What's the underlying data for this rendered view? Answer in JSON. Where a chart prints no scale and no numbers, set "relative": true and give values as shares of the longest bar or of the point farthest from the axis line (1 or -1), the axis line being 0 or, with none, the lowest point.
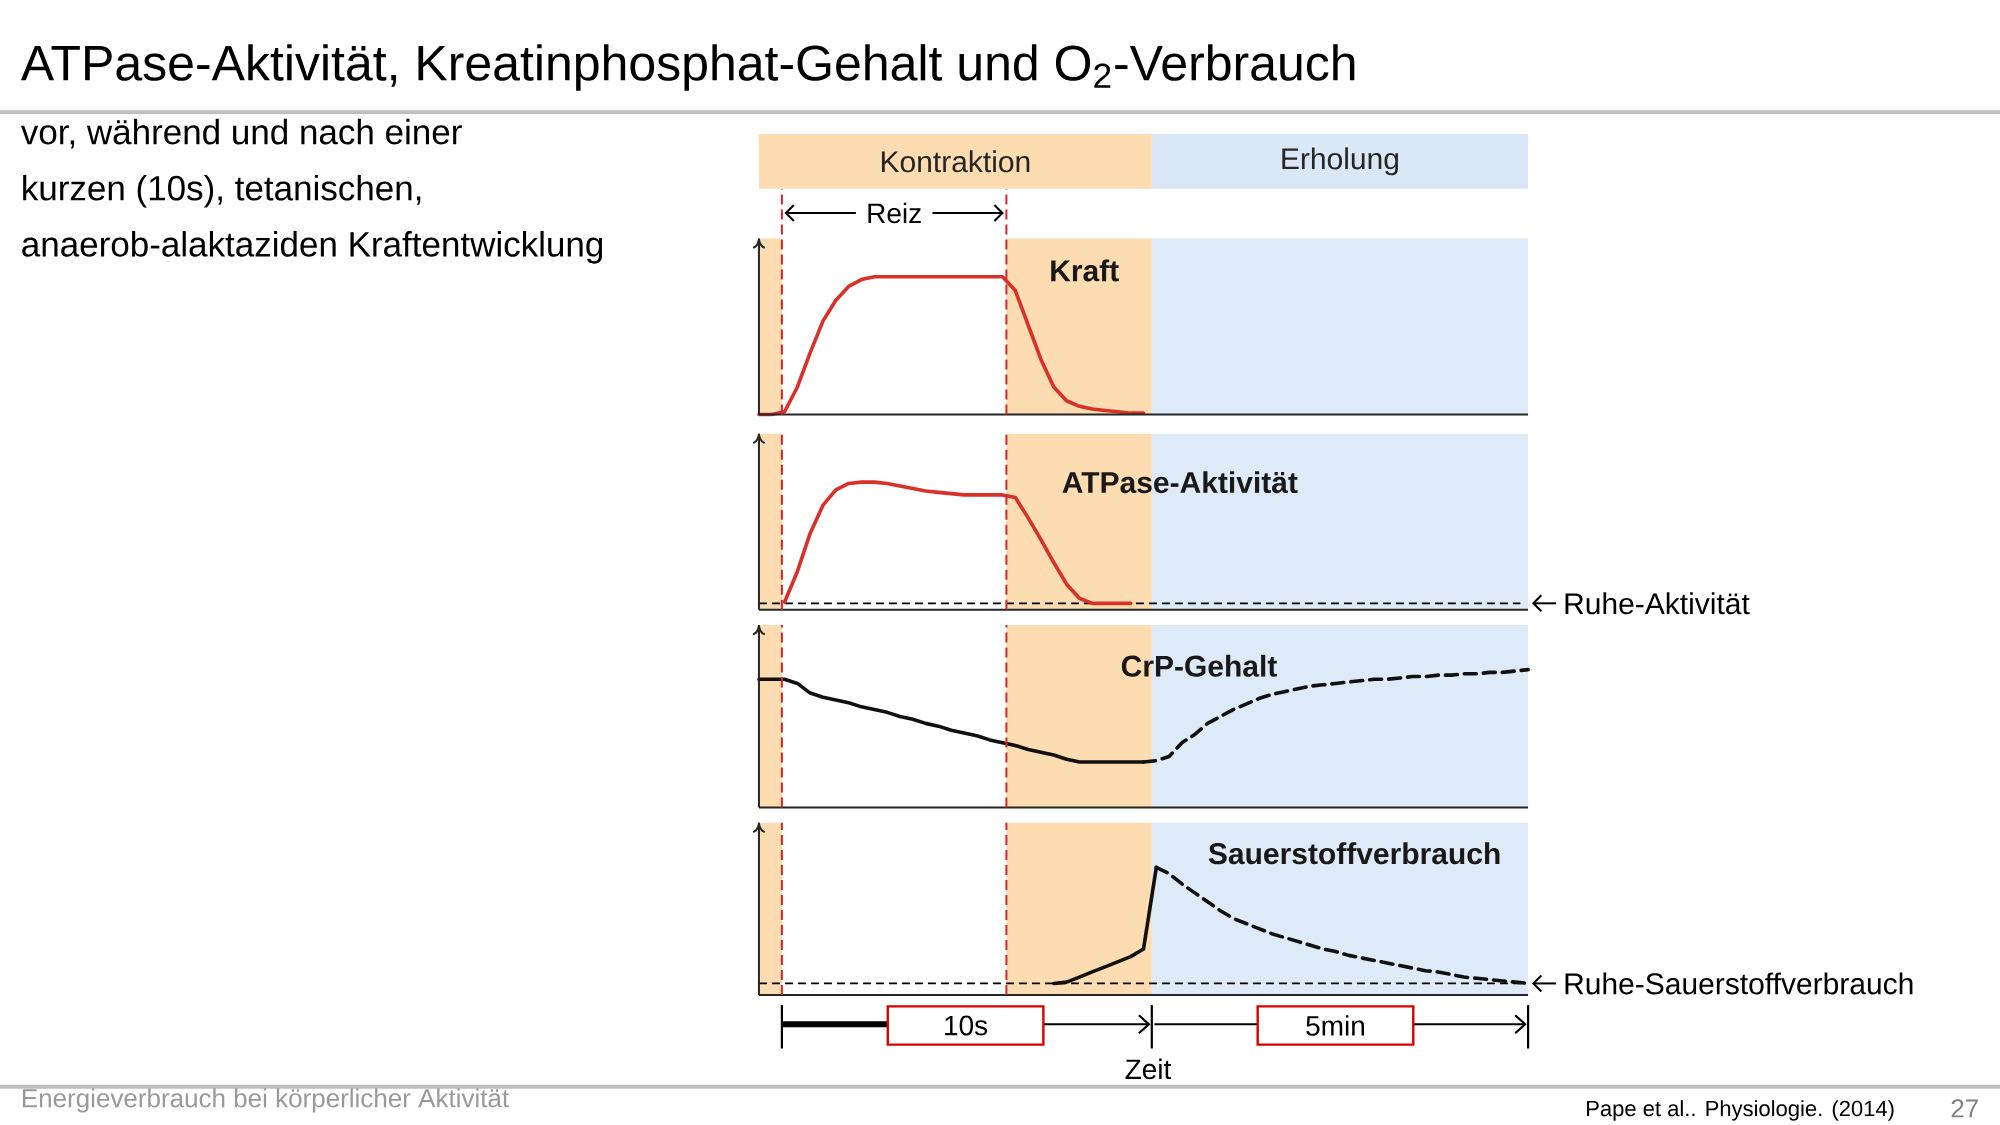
{
  "chart_data": [
    {
      "type": "line",
      "title": "Kraft",
      "relative": true,
      "categories": [
        null,
        null,
        null,
        null,
        null,
        null,
        null,
        null,
        null,
        null,
        null,
        null,
        null,
        null,
        null,
        null,
        null,
        null,
        null,
        null,
        null,
        null,
        null,
        null,
        null,
        null,
        null,
        null,
        null,
        null,
        null,
        null,
        null,
        null,
        null,
        null,
        null,
        null,
        null,
        null,
        null,
        null,
        null,
        null,
        null,
        null,
        null,
        null,
        null,
        null,
        null,
        null,
        null,
        null,
        null,
        null,
        null,
        null,
        null,
        null,
        null
      ],
      "series": [
        {
          "color": "#d9302a",
          "values": [
            0,
            0,
            0.02,
            0.2,
            0.45,
            0.68,
            0.83,
            0.93,
            0.98,
            1,
            1,
            1,
            1,
            1,
            1,
            1,
            1,
            1,
            1,
            1,
            0.9,
            0.65,
            0.4,
            0.2,
            0.1,
            0.06,
            0.04,
            0.03,
            0.02,
            0.01,
            0.01,
            null,
            null,
            null,
            null,
            null,
            null,
            null,
            null,
            null,
            null,
            null,
            null,
            null,
            null,
            null,
            null,
            null,
            null,
            null,
            null,
            null,
            null,
            null,
            null,
            null,
            null,
            null,
            null,
            null,
            null
          ]
        }
      ],
      "annotations": [
        "ATPase-Aktivität, Kreatinphosphat-Gehalt und O$_{2}$-Verbrauch",
        "vor, während und nach einer",
        "kurzen (10s), tetanischen,",
        "anaerob-alaktaziden Kraftentwicklung",
        "Kontraktion",
        "Erholung",
        "Reiz"
      ]
    },
    {
      "type": "line",
      "title": "ATPase-Aktivität",
      "relative": true,
      "categories": [
        null,
        null,
        null,
        null,
        null,
        null,
        null,
        null,
        null,
        null,
        null,
        null,
        null,
        null,
        null,
        null,
        null,
        null,
        null,
        null,
        null,
        null,
        null,
        null,
        null,
        null,
        null,
        null,
        null,
        null,
        null,
        null,
        null,
        null,
        null,
        null,
        null,
        null,
        null,
        null,
        null,
        null,
        null,
        null,
        null,
        null,
        null,
        null,
        null,
        null,
        null,
        null,
        null,
        null,
        null,
        null,
        null,
        null,
        null,
        null,
        null
      ],
      "series": [
        {
          "color": "#d9302a",
          "values": [
            null,
            null,
            0.06,
            0.3,
            0.6,
            0.82,
            0.94,
            0.99,
            1,
            1,
            0.99,
            0.97,
            0.95,
            0.93,
            0.92,
            0.91,
            0.9,
            0.9,
            0.9,
            0.9,
            0.88,
            0.72,
            0.55,
            0.37,
            0.2,
            0.09,
            0.05,
            0.05,
            0.05,
            0.05,
            null,
            null,
            null,
            null,
            null,
            null,
            null,
            null,
            null,
            null,
            null,
            null,
            null,
            null,
            null,
            null,
            null,
            null,
            null,
            null,
            null,
            null,
            null,
            null,
            null,
            null,
            null,
            null,
            null,
            null,
            null
          ]
        }
      ],
      "ref_lines": [
        {
          "axis": "y",
          "value": 0.05,
          "label": "Ruhe-Aktivität",
          "color": "#000000",
          "line_style": "dashed"
        }
      ]
    },
    {
      "type": "line",
      "title": "CrP-Gehalt",
      "relative": true,
      "categories": [
        null,
        null,
        null,
        null,
        null,
        null,
        null,
        null,
        null,
        null,
        null,
        null,
        null,
        null,
        null,
        null,
        null,
        null,
        null,
        null,
        null,
        null,
        null,
        null,
        null,
        null,
        null,
        null,
        null,
        null,
        null,
        null,
        null,
        null,
        null,
        null,
        null,
        null,
        null,
        null,
        null,
        null,
        null,
        null,
        null,
        null,
        null,
        null,
        null,
        null,
        null,
        null,
        null,
        null,
        null,
        null,
        null,
        null,
        null,
        null,
        null
      ],
      "series": [
        {
          "color": "#111111",
          "line_style": "solid",
          "values": [
            0.93,
            0.93,
            0.93,
            0.9,
            0.83,
            0.8,
            0.78,
            0.76,
            0.73,
            0.71,
            0.69,
            0.66,
            0.64,
            0.61,
            0.59,
            0.56,
            0.54,
            0.52,
            0.49,
            0.47,
            0.45,
            0.42,
            0.4,
            0.38,
            0.35,
            0.33,
            0.33,
            0.33,
            0.33,
            0.33,
            0.33,
            null,
            null,
            null,
            null,
            null,
            null,
            null,
            null,
            null,
            null,
            null,
            null,
            null,
            null,
            null,
            null,
            null,
            null,
            null,
            null,
            null,
            null,
            null,
            null,
            null,
            null,
            null,
            null,
            null,
            null
          ]
        },
        {
          "color": "#111111",
          "line_style": "dashed",
          "values": [
            null,
            null,
            null,
            null,
            null,
            null,
            null,
            null,
            null,
            null,
            null,
            null,
            null,
            null,
            null,
            null,
            null,
            null,
            null,
            null,
            null,
            null,
            null,
            null,
            null,
            null,
            null,
            null,
            null,
            null,
            0.33,
            0.34,
            0.37,
            0.47,
            0.53,
            0.61,
            0.66,
            0.71,
            0.75,
            0.79,
            0.82,
            0.84,
            0.86,
            0.88,
            0.89,
            0.9,
            0.91,
            0.92,
            0.93,
            0.93,
            0.94,
            0.95,
            0.95,
            0.96,
            0.96,
            0.97,
            0.97,
            0.98,
            0.98,
            0.99,
            1
          ]
        }
      ]
    },
    {
      "type": "line",
      "title": "Sauerstoffverbrauch",
      "relative": true,
      "categories": [
        null,
        null,
        null,
        null,
        null,
        null,
        null,
        null,
        null,
        null,
        null,
        null,
        null,
        null,
        null,
        null,
        null,
        null,
        null,
        null,
        null,
        null,
        null,
        null,
        null,
        null,
        null,
        null,
        null,
        null,
        null,
        null,
        null,
        null,
        null,
        null,
        null,
        null,
        null,
        null,
        null,
        null,
        null,
        null,
        null,
        null,
        null,
        null,
        null,
        null,
        null,
        null,
        null,
        null,
        null,
        null,
        null,
        null,
        null,
        null,
        null
      ],
      "series": [
        {
          "color": "#111111",
          "line_style": "solid",
          "values": [
            null,
            null,
            null,
            null,
            null,
            null,
            null,
            null,
            null,
            null,
            null,
            null,
            null,
            null,
            null,
            null,
            null,
            null,
            null,
            null,
            null,
            null,
            null,
            0.09,
            0.1,
            0.14,
            0.18,
            0.22,
            0.26,
            0.3,
            0.36,
            1,
            null,
            null,
            null,
            null,
            null,
            null,
            null,
            null,
            null,
            null,
            null,
            null,
            null,
            null,
            null,
            null,
            null,
            null,
            null,
            null,
            null,
            null,
            null,
            null,
            null,
            null,
            null,
            null,
            null
          ]
        },
        {
          "color": "#111111",
          "line_style": "dashed",
          "values": [
            null,
            null,
            null,
            null,
            null,
            null,
            null,
            null,
            null,
            null,
            null,
            null,
            null,
            null,
            null,
            null,
            null,
            null,
            null,
            null,
            null,
            null,
            null,
            null,
            null,
            null,
            null,
            null,
            null,
            null,
            null,
            1,
            0.95,
            0.87,
            0.8,
            0.73,
            0.66,
            0.6,
            0.56,
            0.52,
            0.48,
            0.45,
            0.42,
            0.39,
            0.36,
            0.34,
            0.31,
            0.29,
            0.27,
            0.25,
            0.23,
            0.21,
            0.19,
            0.18,
            0.16,
            0.14,
            0.13,
            0.12,
            0.11,
            0.1,
            0.09
          ]
        }
      ],
      "ref_lines": [
        {
          "axis": "y",
          "value": 0.09,
          "label": "Ruhe-Sauerstoffverbrauch",
          "color": "#000000",
          "line_style": "dashed"
        }
      ],
      "annotations": [
        "10s",
        "5min",
        "Zeit",
        "Energieverbrauch bei körperlicher Aktivität",
        "Pape et al.. Physiologie. (2014)",
        "27"
      ]
    }
  ]
}
